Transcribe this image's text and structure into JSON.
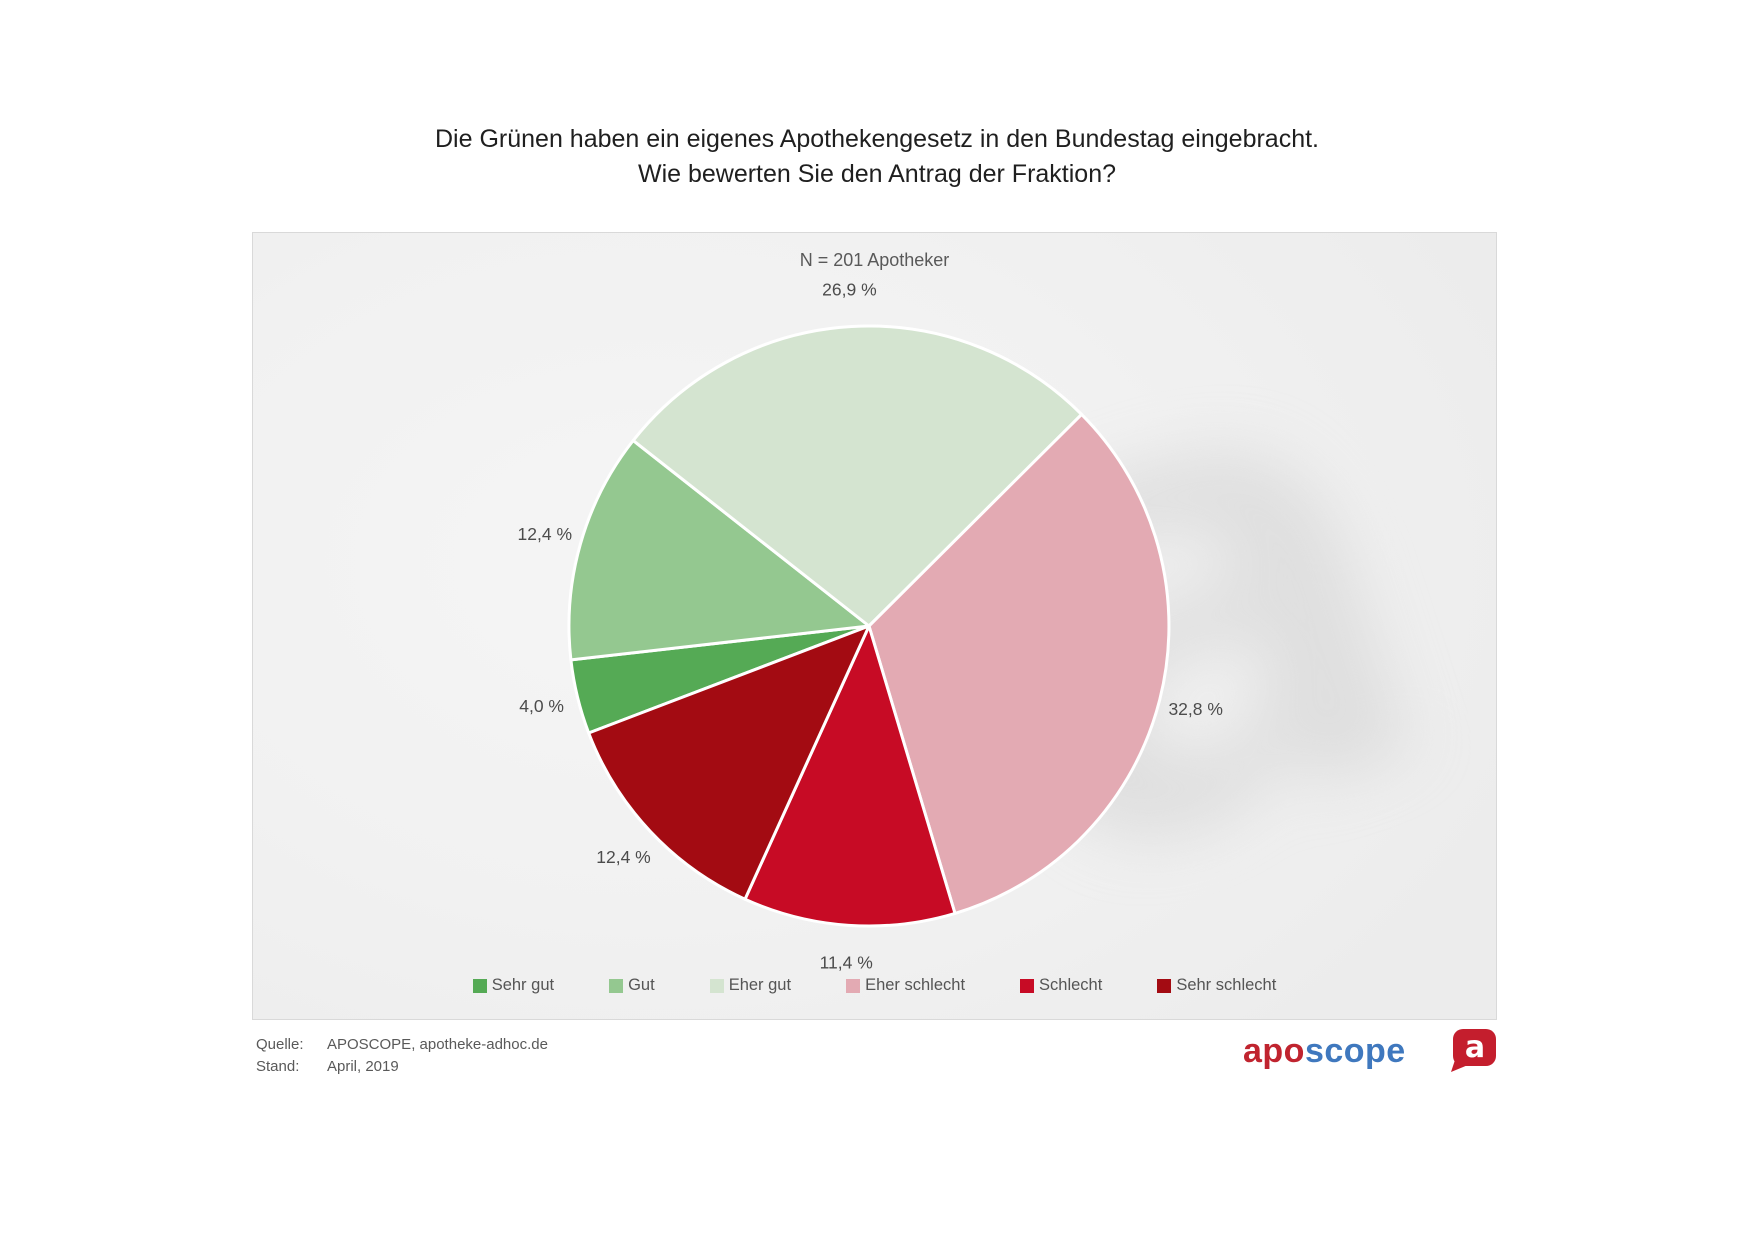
{
  "header": {
    "title_line1": "Die Grünen haben ein eigenes Apothekengesetz in den Bundestag eingebracht.",
    "title_line2": "Wie bewerten Sie den Antrag der Fraktion?"
  },
  "chart_data": {
    "type": "pie",
    "subtitle": "N = 201 Apotheker",
    "legend_position": "bottom",
    "rotation_deg_from_top": 249.1,
    "slices": [
      {
        "label": "Sehr gut",
        "value": 4.0,
        "display": "4,0 %",
        "color": "#55aa55"
      },
      {
        "label": "Gut",
        "value": 12.4,
        "display": "12,4 %",
        "color": "#94c890"
      },
      {
        "label": "Eher gut",
        "value": 26.9,
        "display": "26,9 %",
        "color": "#d4e4d0"
      },
      {
        "label": "Eher schlecht",
        "value": 32.8,
        "display": "32,8 %",
        "color": "#e3aab3"
      },
      {
        "label": "Schlecht",
        "value": 11.4,
        "display": "11,4 %",
        "color": "#c70b25"
      },
      {
        "label": "Sehr schlecht",
        "value": 12.4,
        "display": "12,4 %",
        "color": "#a30b12"
      }
    ]
  },
  "footer": {
    "quelle_label": "Quelle:",
    "quelle_value": "APOSCOPE, apotheke-adhoc.de",
    "stand_label": "Stand:",
    "stand_value": "April, 2019"
  },
  "logo": {
    "part1": "apo",
    "part2": "scope",
    "part1_color": "#c0242f",
    "part2_color": "#3f78be",
    "icon_letter": "a",
    "icon_color": "#c41e2d"
  }
}
